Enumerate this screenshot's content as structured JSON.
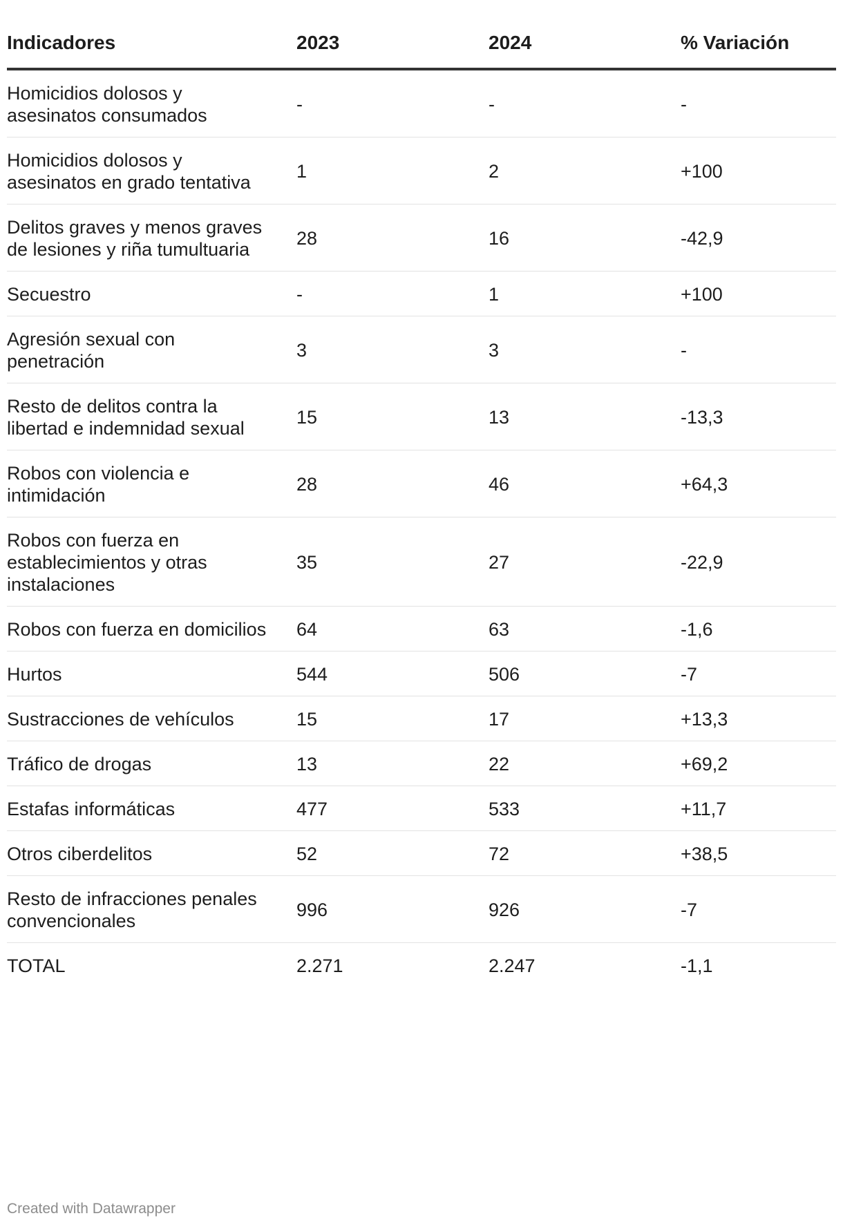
{
  "chart_data": {
    "type": "table",
    "columns": [
      "Indicadores",
      "2023",
      "2024",
      "% Variación"
    ],
    "rows": [
      [
        "Homicidios dolosos y asesinatos consumados",
        "-",
        "-",
        "-"
      ],
      [
        "Homicidios dolosos y asesinatos en grado tentativa",
        "1",
        "2",
        "+100"
      ],
      [
        "Delitos graves y menos graves de lesiones y riña tumultuaria",
        "28",
        "16",
        "-42,9"
      ],
      [
        "Secuestro",
        "-",
        "1",
        "+100"
      ],
      [
        "Agresión sexual con penetración",
        "3",
        "3",
        "-"
      ],
      [
        "Resto de delitos contra la libertad e indemnidad sexual",
        "15",
        "13",
        "-13,3"
      ],
      [
        "Robos con violencia e intimidación",
        "28",
        "46",
        "+64,3"
      ],
      [
        "Robos con fuerza en establecimientos y otras instalaciones",
        "35",
        "27",
        "-22,9"
      ],
      [
        "Robos con fuerza en domicilios",
        "64",
        "63",
        "-1,6"
      ],
      [
        "Hurtos",
        "544",
        "506",
        "-7"
      ],
      [
        "Sustracciones de vehículos",
        "15",
        "17",
        "+13,3"
      ],
      [
        "Tráfico de drogas",
        "13",
        "22",
        "+69,2"
      ],
      [
        "Estafas informáticas",
        "477",
        "533",
        "+11,7"
      ],
      [
        "Otros ciberdelitos",
        "52",
        "72",
        "+38,5"
      ],
      [
        "Resto de infracciones penales convencionales",
        "996",
        "926",
        "-7"
      ],
      [
        "TOTAL",
        "2.271",
        "2.247",
        "-1,1"
      ]
    ]
  },
  "footer": {
    "credit": "Created with Datawrapper"
  },
  "colors": {
    "text": "#1d1d1d",
    "header_rule": "#333333",
    "row_rule": "#e2e2e2",
    "footer_text": "#8c8c8c"
  }
}
